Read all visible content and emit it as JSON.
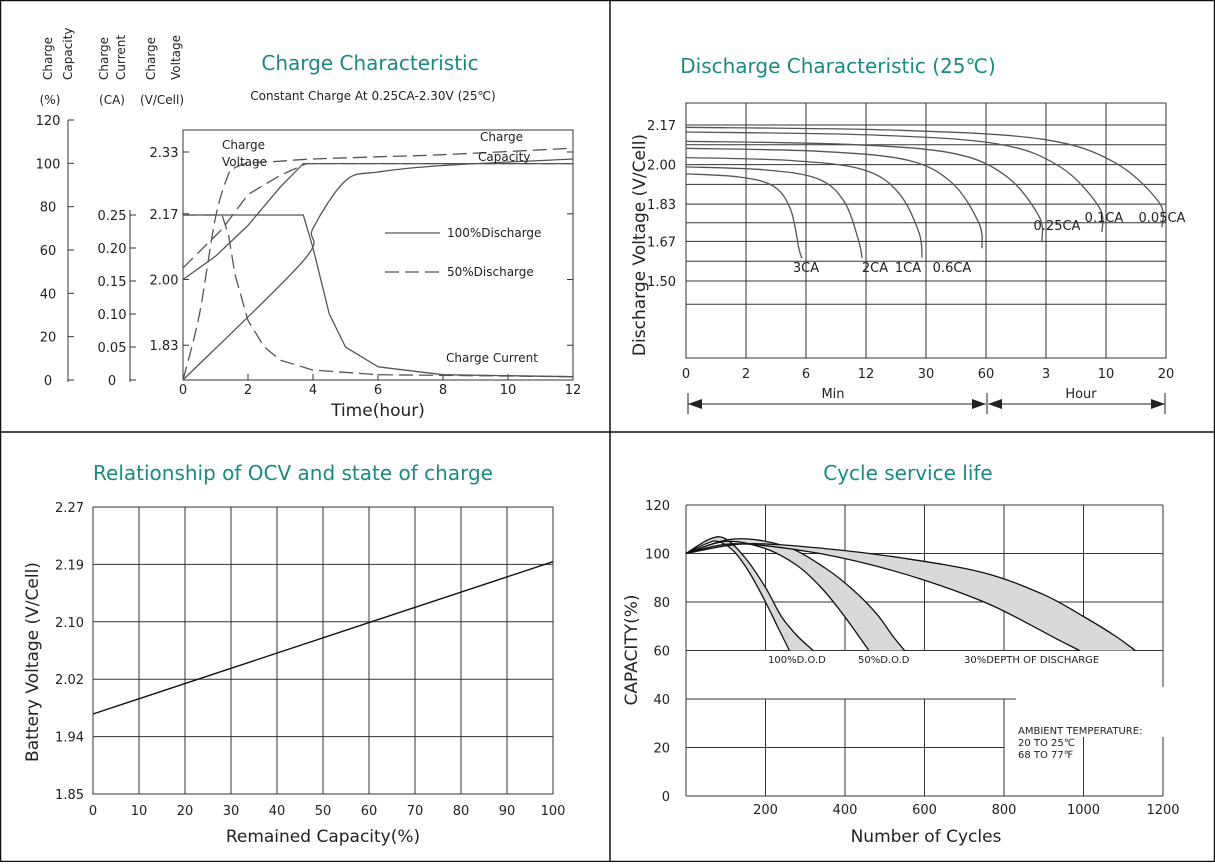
{
  "chart_data": [
    {
      "type": "line",
      "title": "Charge Characteristic",
      "subtitle": "Constant Charge At 0.25CA-2.30V (25℃)",
      "xlabel": "Time(hour)",
      "x_ticks": [
        "0",
        "2",
        "4",
        "6",
        "8",
        "10",
        "12"
      ],
      "axis_headers": {
        "capacity": "Charge Capacity",
        "current": "Charge Current",
        "voltage": "Charge Voltage"
      },
      "axis_units": {
        "capacity": "(%)",
        "current": "(CA)",
        "voltage": "(V/Cell)"
      },
      "capacity_ticks": [
        "120",
        "100",
        "80",
        "60",
        "40",
        "20",
        "0"
      ],
      "current_ticks": [
        "0.25",
        "0.20",
        "0.15",
        "0.10",
        "0.05",
        "0"
      ],
      "voltage_ticks": [
        "2.33",
        "2.17",
        "2.00",
        "1.83"
      ],
      "curve_labels": {
        "voltage": "Charge Voltage",
        "capacity": "Charge Capacity",
        "current": "Charge Current"
      },
      "legend": [
        {
          "name": "100%Discharge",
          "style": "solid"
        },
        {
          "name": "50%Discharge",
          "style": "dashed"
        }
      ],
      "series": [
        {
          "name": "Charge Voltage 100%",
          "style": "solid",
          "x": [
            0,
            1,
            2,
            3,
            3.7,
            12
          ],
          "y_volts": [
            2.0,
            2.06,
            2.14,
            2.24,
            2.3,
            2.3
          ]
        },
        {
          "name": "Charge Voltage 50%",
          "style": "dashed",
          "x": [
            0,
            0.6,
            1.2,
            2,
            3,
            3.8,
            12
          ],
          "y_volts": [
            2.03,
            2.08,
            2.13,
            2.22,
            2.27,
            2.3,
            2.3
          ]
        },
        {
          "name": "Charge Current 100%",
          "style": "solid",
          "x": [
            0,
            3.7,
            4,
            4.5,
            5,
            6,
            8,
            12
          ],
          "y_ca": [
            0.25,
            0.25,
            0.2,
            0.1,
            0.05,
            0.02,
            0.008,
            0.005
          ]
        },
        {
          "name": "Charge Current 50%",
          "style": "dashed",
          "x": [
            0,
            1.2,
            1.4,
            1.6,
            2,
            2.5,
            3,
            4,
            6,
            12
          ],
          "y_ca": [
            0.25,
            0.25,
            0.22,
            0.16,
            0.09,
            0.05,
            0.03,
            0.015,
            0.008,
            0.005
          ]
        },
        {
          "name": "Charge Capacity 100%",
          "style": "solid",
          "x": [
            0,
            3.7,
            4,
            5,
            6,
            8,
            12
          ],
          "y_pct": [
            0,
            55,
            70,
            92,
            96,
            99,
            102
          ]
        },
        {
          "name": "Charge Capacity 50%",
          "style": "dashed",
          "x": [
            0,
            0.5,
            1,
            1.4,
            1.6,
            2,
            3,
            4,
            6,
            8,
            12
          ],
          "y_pct": [
            0,
            30,
            75,
            95,
            98,
            100,
            101,
            102,
            103,
            104,
            107
          ]
        }
      ]
    },
    {
      "type": "line",
      "title": "Discharge Characteristic (25℃)",
      "ylabel": "Discharge Voltage (V/Cell)",
      "y_ticks": [
        "2.17",
        "2.00",
        "1.83",
        "1.67",
        "1.50"
      ],
      "x_ticks": [
        "0",
        "2",
        "6",
        "12",
        "30",
        "60",
        "3",
        "10",
        "20"
      ],
      "x_units": [
        {
          "label": "Min"
        },
        {
          "label": "Hour"
        }
      ],
      "curve_labels": [
        "3CA",
        "2CA",
        "1CA",
        "0.6CA",
        "0.25CA",
        "0.1CA",
        "0.05CA"
      ],
      "series": [
        {
          "name": "3CA",
          "start_v": 1.96,
          "end_tick_index": 2
        },
        {
          "name": "2CA",
          "start_v": 1.99,
          "end_tick_index": 3
        },
        {
          "name": "1CA",
          "start_v": 2.03,
          "end_tick_index": 4
        },
        {
          "name": "0.6CA",
          "start_v": 2.07,
          "end_tick_index": 5
        },
        {
          "name": "0.25CA",
          "start_v": 2.1,
          "end_tick_index": 6
        },
        {
          "name": "0.1CA",
          "start_v": 2.14,
          "end_tick_index": 7
        },
        {
          "name": "0.05CA",
          "start_v": 2.16,
          "end_tick_index": 8
        }
      ]
    },
    {
      "type": "line",
      "title": "Relationship of OCV and state of charge",
      "xlabel": "Remained Capacity(%)",
      "ylabel": "Battery Voltage (V/Cell)",
      "x_ticks": [
        "0",
        "10",
        "20",
        "30",
        "40",
        "50",
        "60",
        "70",
        "80",
        "90",
        "100"
      ],
      "y_ticks": [
        "2.27",
        "2.19",
        "2.10",
        "2.02",
        "1.94",
        "1.85"
      ],
      "series": [
        {
          "name": "OCV",
          "x": [
            0,
            100
          ],
          "y": [
            1.97,
            2.19
          ]
        }
      ]
    },
    {
      "type": "area",
      "title": "Cycle service life",
      "xlabel": "Number of Cycles",
      "ylabel": "CAPACITY(%)",
      "x_ticks": [
        "200",
        "400",
        "600",
        "800",
        "1000",
        "1200"
      ],
      "y_ticks": [
        "120",
        "100",
        "80",
        "60",
        "40",
        "20",
        "0"
      ],
      "labels": [
        "100%D.O.D",
        "50%D.O.D",
        "30%DEPTH OF DISCHARGE"
      ],
      "note": [
        "AMBIENT TEMPERATURE:",
        "20 TO 25℃",
        "68 TO 77℉"
      ],
      "series": [
        {
          "name": "100%D.O.D",
          "upper": {
            "x": [
              0,
              60,
              100,
              150,
              200,
              240,
              280,
              320
            ],
            "y": [
              100,
              106,
              106,
              98,
              86,
              74,
              66,
              60
            ]
          },
          "lower": {
            "x": [
              0,
              50,
              80,
              120,
              160,
              200,
              230,
              260
            ],
            "y": [
              100,
              104,
              105,
              101,
              92,
              80,
              70,
              60
            ]
          }
        },
        {
          "name": "50%D.O.D",
          "upper": {
            "x": [
              0,
              120,
              250,
              350,
              420,
              480,
              520,
              550
            ],
            "y": [
              100,
              106,
              103,
              94,
              85,
              75,
              66,
              60
            ]
          },
          "lower": {
            "x": [
              0,
              100,
              200,
              280,
              340,
              390,
              430,
              460
            ],
            "y": [
              100,
              105,
              102,
              95,
              86,
              76,
              67,
              60
            ]
          }
        },
        {
          "name": "30%DEPTH OF DISCHARGE",
          "upper": {
            "x": [
              0,
              150,
              350,
              550,
              750,
              900,
              1000,
              1080,
              1130
            ],
            "y": [
              100,
              104,
              102,
              98,
              92,
              83,
              74,
              66,
              60
            ]
          },
          "lower": {
            "x": [
              0,
              120,
              300,
              450,
              600,
              750,
              850,
              930,
              990
            ],
            "y": [
              100,
              104,
              101,
              96,
              89,
              80,
              72,
              65,
              60
            ]
          }
        }
      ]
    }
  ]
}
